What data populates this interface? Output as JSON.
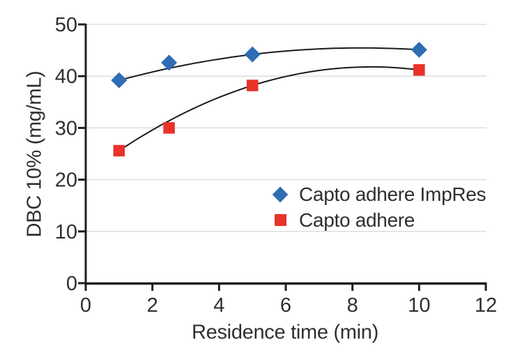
{
  "chart_data": {
    "type": "scatter",
    "title": "",
    "xlabel": "Residence time (min)",
    "ylabel": "DBC 10% (mg/mL)",
    "xlim": [
      0,
      12
    ],
    "ylim": [
      0,
      50
    ],
    "xticks": [
      0,
      2,
      4,
      6,
      8,
      10,
      12
    ],
    "yticks": [
      0,
      10,
      20,
      30,
      40,
      50
    ],
    "grid": "horizontal-only",
    "legend_position": "inside-middle-right",
    "series": [
      {
        "name": "Capto adhere ImpRes",
        "marker": "diamond",
        "color": "#2e6db4",
        "points": [
          {
            "x": 1,
            "y": 39.2
          },
          {
            "x": 2.5,
            "y": 42.6
          },
          {
            "x": 5,
            "y": 44.2
          },
          {
            "x": 10,
            "y": 45.1
          }
        ],
        "trend": {
          "type": "quadratic",
          "a": 37.356,
          "b": 1.963,
          "c": -0.1189,
          "range": [
            1,
            10
          ]
        }
      },
      {
        "name": "Capto adhere",
        "marker": "square",
        "color": "#e8322a",
        "points": [
          {
            "x": 1,
            "y": 25.6
          },
          {
            "x": 2.5,
            "y": 30.0
          },
          {
            "x": 5,
            "y": 38.2
          },
          {
            "x": 10,
            "y": 41.2
          }
        ],
        "trend": {
          "type": "quadratic",
          "a": 21.033,
          "b": 4.85,
          "c": -0.2833,
          "range": [
            1,
            10
          ]
        }
      }
    ],
    "trendline_color": "#1a1a1a"
  },
  "style_colors": {
    "background": "#ffffff",
    "grid": "#d9d9d9",
    "axis": "#1f1f1f",
    "text": "#2d2f32",
    "series_blue": "#2e6db4",
    "series_red": "#e8322a"
  }
}
